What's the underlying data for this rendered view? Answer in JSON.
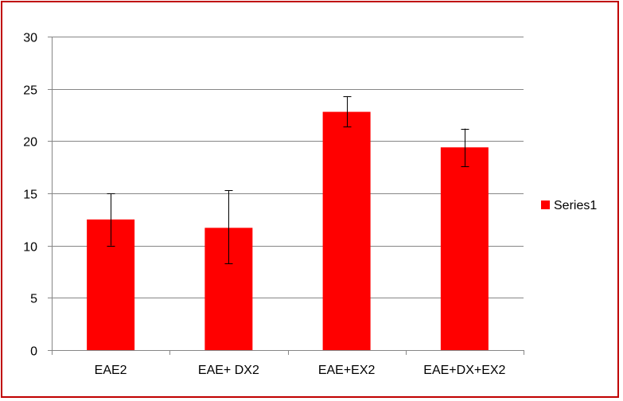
{
  "chart_data": {
    "type": "bar",
    "title": "",
    "xlabel": "",
    "ylabel": "",
    "categories": [
      "EAE2",
      "EAE+ DX2",
      "EAE+EX2",
      "EAE+DX+EX2"
    ],
    "series": [
      {
        "name": "Series1",
        "values": [
          12.5,
          11.7,
          22.8,
          19.4
        ],
        "error_low": [
          10.0,
          8.3,
          21.4,
          17.6
        ],
        "error_high": [
          15.0,
          15.3,
          24.3,
          21.2
        ],
        "color": "#ff0000"
      }
    ],
    "ylim": [
      0,
      30
    ],
    "yticks": [
      0,
      5,
      10,
      15,
      20,
      25,
      30
    ],
    "grid": true,
    "legend_position": "right",
    "frame_color": "#c00000"
  }
}
